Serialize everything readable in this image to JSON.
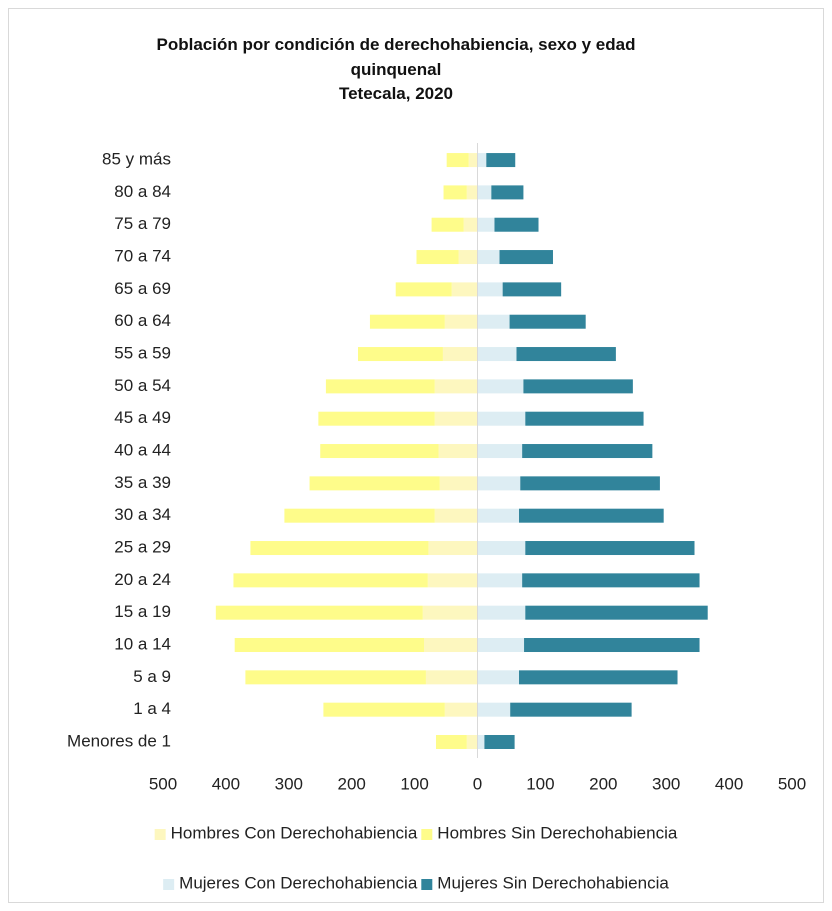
{
  "chart_data": {
    "type": "bar",
    "orientation": "horizontal",
    "stacked": true,
    "title": "Población por condición de derechohabiencia, sexo y edad quinquenal",
    "subtitle": "Tetecala, 2020",
    "categories": [
      "Menores de 1",
      "1 a 4",
      "5 a 9",
      "10 a 14",
      "15 a 19",
      "20 a 24",
      "25 a 29",
      "30 a 34",
      "35 a 39",
      "40 a 44",
      "45 a 49",
      "50 a 54",
      "55 a 59",
      "60 a 64",
      "65 a 69",
      "70 a 74",
      "75 a 79",
      "80 a 84",
      "85 y más"
    ],
    "series": [
      {
        "name": "Hombres Con Derechohabiencia",
        "color": "#fdf7bf",
        "values": [
          -17,
          -52,
          -82,
          -85,
          -87,
          -79,
          -78,
          -68,
          -60,
          -62,
          -68,
          -68,
          -55,
          -52,
          -41,
          -30,
          -22,
          -17,
          -14
        ]
      },
      {
        "name": "Hombres Sin Derechohabiencia",
        "color": "#fefc8a",
        "values": [
          -49,
          -193,
          -287,
          -301,
          -329,
          -309,
          -283,
          -239,
          -207,
          -188,
          -185,
          -173,
          -135,
          -119,
          -89,
          -67,
          -51,
          -37,
          -35
        ]
      },
      {
        "name": "Mujeres Con Derechohabiencia",
        "color": "#ddedf3",
        "values": [
          11,
          52,
          66,
          74,
          76,
          71,
          76,
          66,
          68,
          71,
          76,
          73,
          62,
          51,
          40,
          35,
          27,
          22,
          14
        ]
      },
      {
        "name": "Mujeres Sin Derechohabiencia",
        "color": "#31849b",
        "values": [
          48,
          193,
          252,
          279,
          290,
          282,
          269,
          230,
          222,
          207,
          188,
          174,
          158,
          121,
          93,
          85,
          70,
          51,
          46
        ]
      }
    ],
    "xlim": [
      -500,
      500
    ],
    "xticks": [
      {
        "value": -500,
        "label": "500"
      },
      {
        "value": -400,
        "label": "400"
      },
      {
        "value": -300,
        "label": "300"
      },
      {
        "value": -200,
        "label": "200"
      },
      {
        "value": -100,
        "label": "100"
      },
      0,
      100,
      200,
      300,
      400,
      500
    ],
    "grid": false,
    "legend": "bottom"
  }
}
